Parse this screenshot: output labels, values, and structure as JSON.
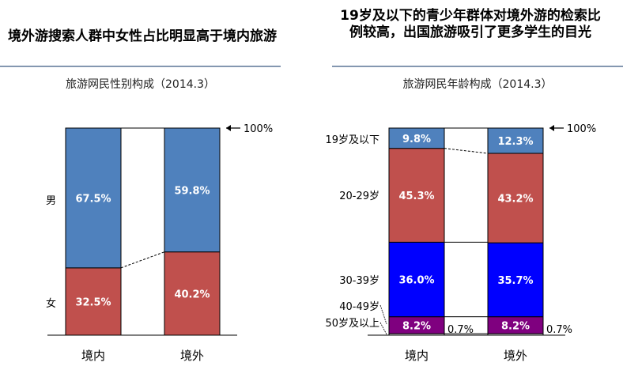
{
  "left": {
    "title": "境外游搜索人群中女性占比明显高于境内旅游",
    "subtitle": "旅游网民性别构成（2014.3）"
  },
  "right": {
    "title": "19岁及以下的青少年群体对境外游的检索比例较高，出国旅游吸引了更多学生的目光",
    "subtitle": "旅游网民年龄构成（2014.3）"
  },
  "chart_data": [
    {
      "type": "bar",
      "stacked": true,
      "categories": [
        "境内",
        "境外"
      ],
      "top_annotation": "100%",
      "ylim": [
        0,
        100
      ],
      "series": [
        {
          "name": "女",
          "values": [
            32.5,
            40.2
          ],
          "labels": [
            "32.5%",
            "40.2%"
          ],
          "color": "#c0504d"
        },
        {
          "name": "男",
          "values": [
            67.5,
            59.8
          ],
          "labels": [
            "67.5%",
            "59.8%"
          ],
          "color": "#4f81bd"
        }
      ]
    },
    {
      "type": "bar",
      "stacked": true,
      "categories": [
        "境内",
        "境外"
      ],
      "top_annotation": "100%",
      "ylim": [
        0,
        100
      ],
      "series": [
        {
          "name": "50岁及以上",
          "values": [
            0.7,
            0.7
          ],
          "labels": [
            "0.7%",
            "0.7%"
          ],
          "color": "#ffffff"
        },
        {
          "name": "40-49岁",
          "values": [
            8.2,
            8.2
          ],
          "labels": [
            "8.2%",
            "8.2%"
          ],
          "color": "#7f007f"
        },
        {
          "name": "30-39岁",
          "values": [
            36.0,
            35.7
          ],
          "labels": [
            "36.0%",
            "35.7%"
          ],
          "color": "#0000ff"
        },
        {
          "name": "20-29岁",
          "values": [
            45.3,
            43.2
          ],
          "labels": [
            "45.3%",
            "43.2%"
          ],
          "color": "#c0504d"
        },
        {
          "name": "19岁及以下",
          "values": [
            9.8,
            12.3
          ],
          "labels": [
            "9.8%",
            "12.3%"
          ],
          "color": "#4f81bd"
        }
      ]
    }
  ]
}
